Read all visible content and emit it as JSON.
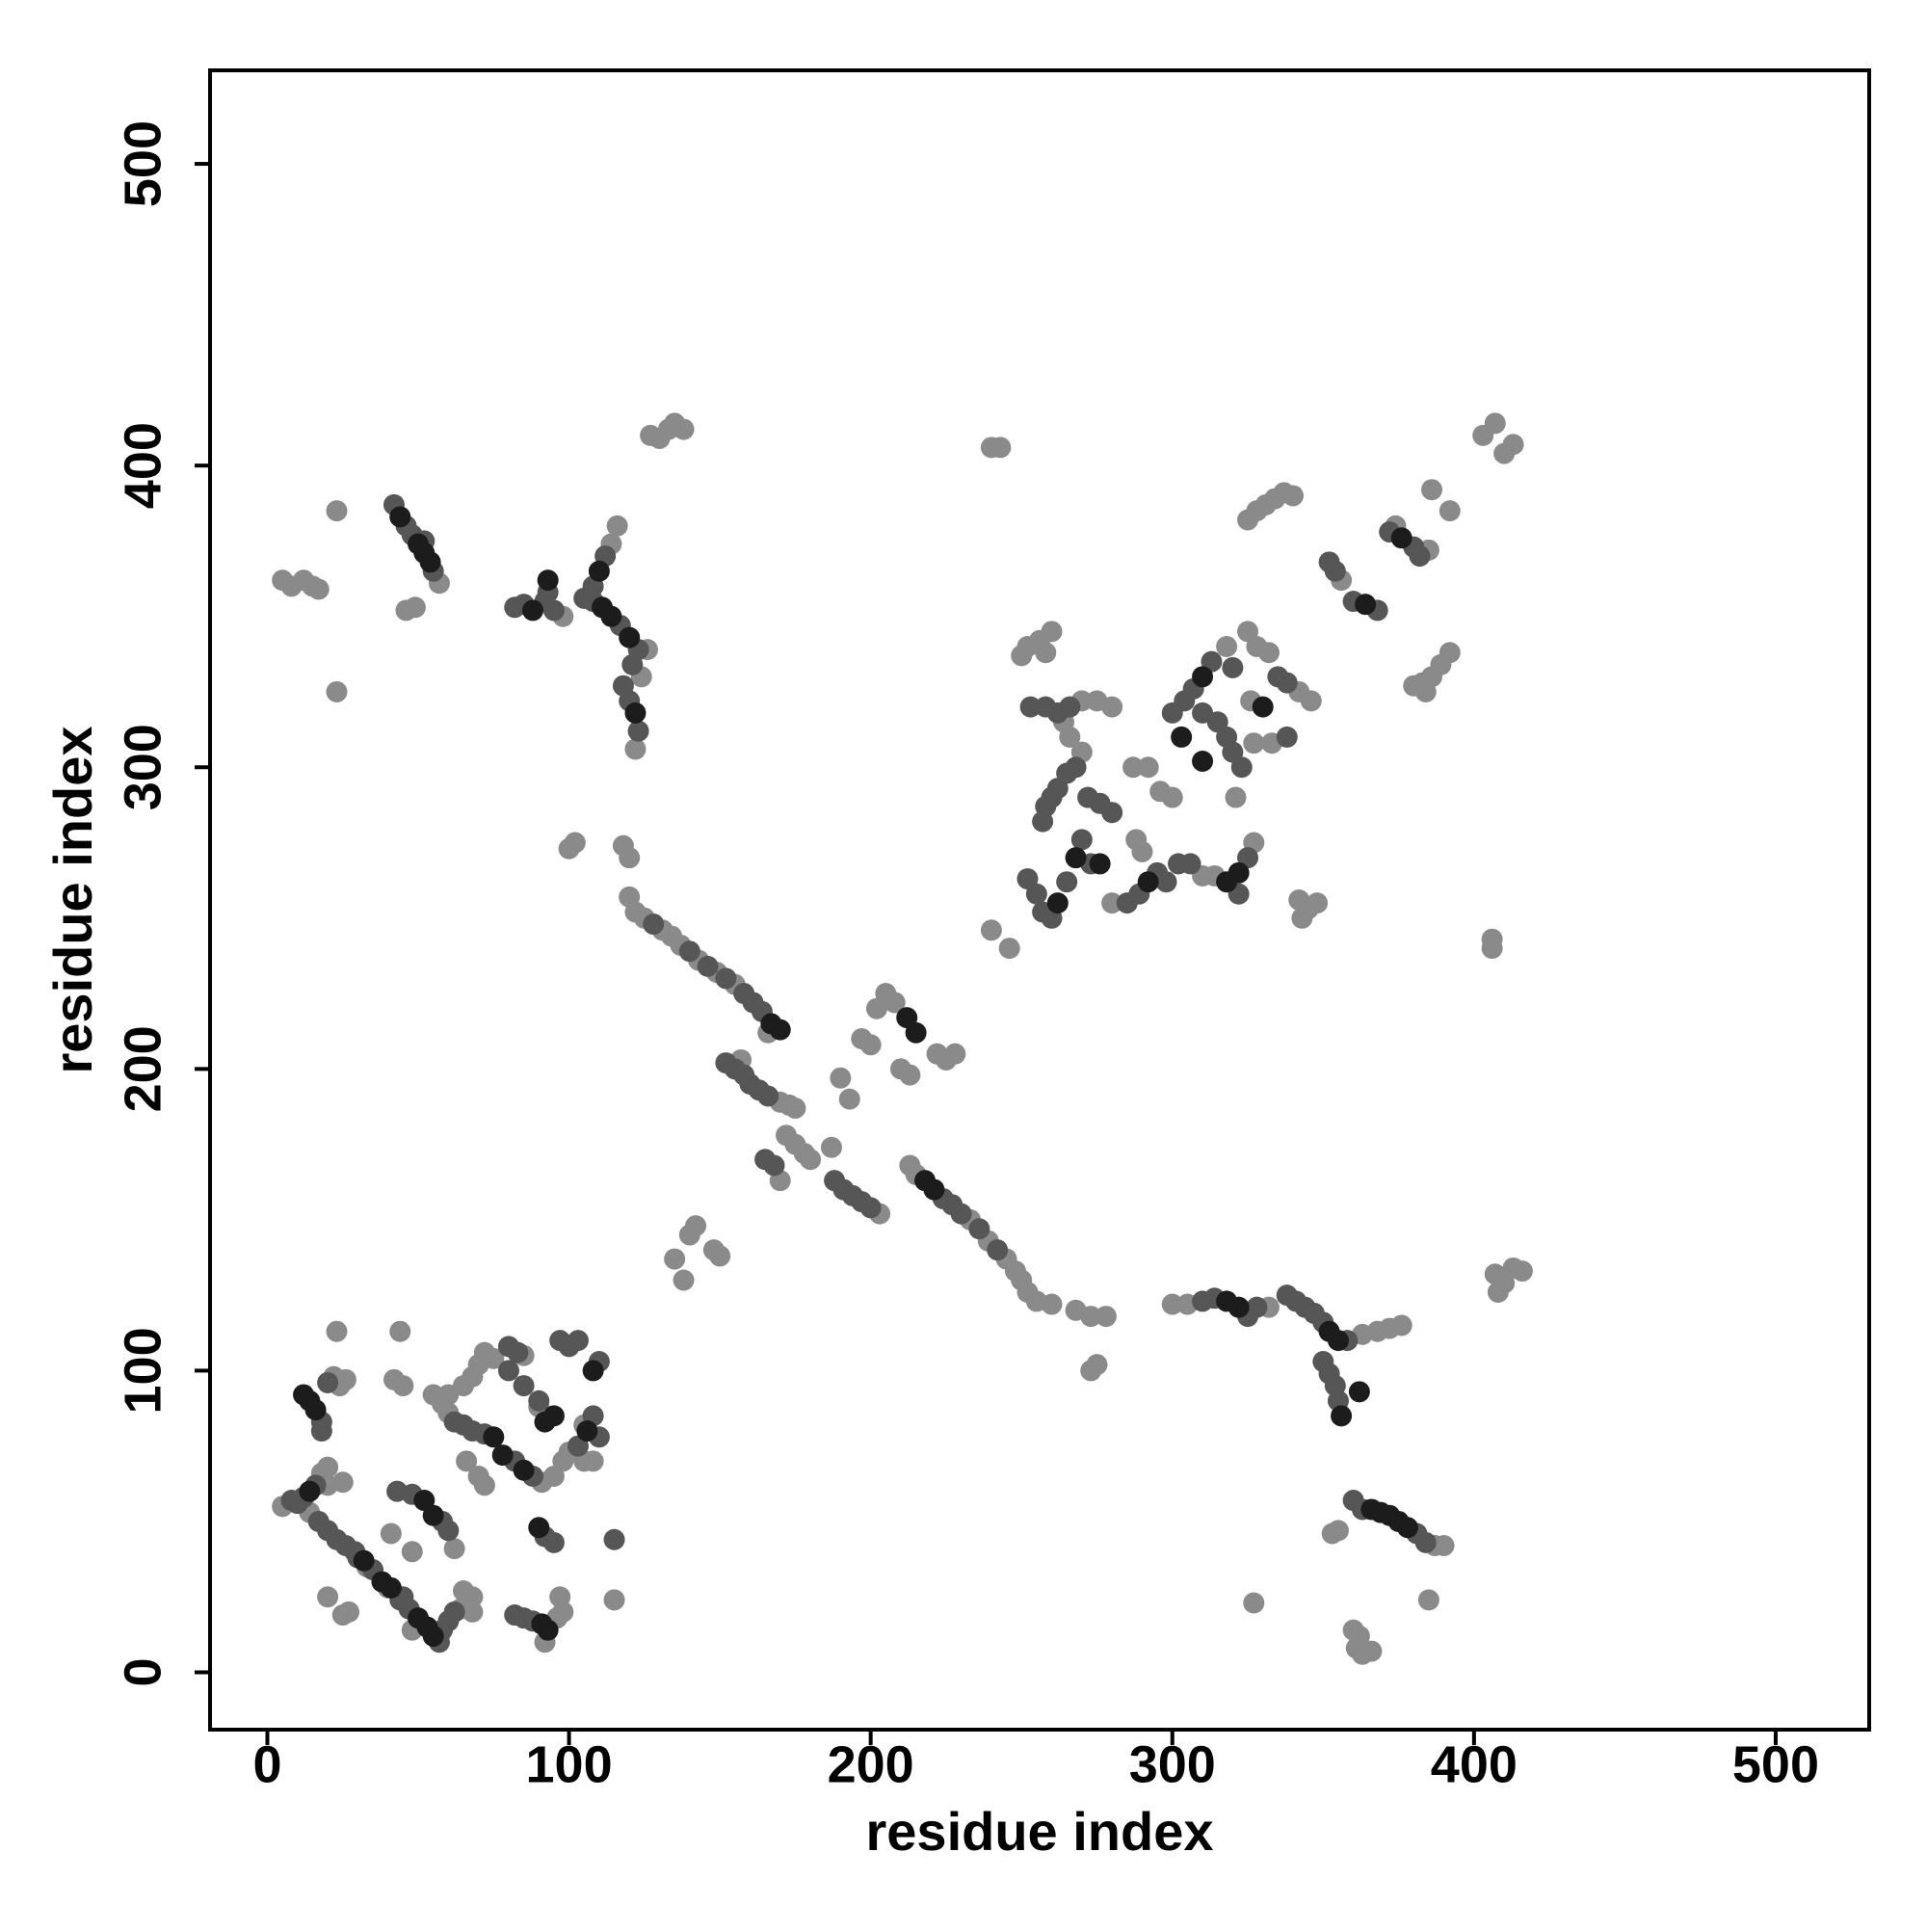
{
  "chart_data": {
    "type": "scatter",
    "xlabel": "residue index",
    "ylabel": "residue index",
    "xlim": [
      -19,
      531
    ],
    "ylim": [
      -19,
      531
    ],
    "xticks": [
      0,
      100,
      200,
      300,
      400,
      500
    ],
    "yticks": [
      0,
      100,
      200,
      300,
      400,
      500
    ],
    "grid": false,
    "series": [
      {
        "color": "#8a8a8a",
        "x": [
          5,
          8,
          12,
          15,
          17,
          23,
          23,
          57,
          46,
          49,
          98,
          126,
          114,
          116,
          122,
          124,
          100,
          102,
          118,
          120,
          127,
          130,
          133,
          135,
          138,
          240,
          243,
          120,
          122,
          125,
          131,
          134,
          137,
          143,
          149,
          155,
          166,
          157,
          170,
          173,
          170,
          172,
          175,
          178,
          180,
          175,
          187,
          193,
          190,
          197,
          200,
          202,
          205,
          208,
          210,
          213,
          222,
          225,
          228,
          135,
          140,
          142,
          138,
          148,
          150,
          203,
          213,
          215,
          233,
          239,
          245,
          248,
          250,
          252,
          255,
          260,
          268,
          273,
          275,
          273,
          278,
          300,
          305,
          332,
          363,
          368,
          372,
          376,
          353,
          355,
          385,
          327,
          360,
          362,
          361,
          363,
          366,
          387,
          390,
          407,
          410,
          413,
          416,
          408,
          240,
          246,
          252,
          256,
          260,
          250,
          258,
          270,
          275,
          280,
          266,
          264,
          270,
          280,
          288,
          290,
          310,
          314,
          287,
          292,
          296,
          300,
          318,
          325,
          328,
          332,
          342,
          346,
          326,
          327,
          333,
          327,
          321,
          343,
          345,
          348,
          342,
          325,
          328,
          331,
          334,
          337,
          340,
          356,
          374,
          385,
          386,
          392,
          380,
          383,
          386,
          389,
          392,
          384,
          403,
          407,
          410,
          413,
          406,
          406,
          5,
          14,
          18,
          20,
          64,
          68,
          65,
          68,
          22,
          24,
          26,
          23,
          44,
          42,
          45,
          25,
          18,
          20,
          27,
          20,
          25,
          62,
          48,
          41,
          33,
          40,
          48,
          96,
          98,
          97,
          92,
          55,
          58,
          60,
          91,
          95,
          98,
          100,
          105,
          75,
          72,
          70,
          68,
          65,
          85,
          90,
          115,
          108,
          105,
          60,
          66,
          70,
          72
        ],
        "values": [
          362,
          360,
          362,
          360,
          359,
          385,
          325,
          361,
          352,
          353,
          350,
          339,
          374,
          380,
          306,
          330,
          273,
          275,
          274,
          270,
          410,
          409,
          412,
          414,
          412,
          406,
          406,
          257,
          252,
          250,
          246,
          244,
          241,
          236,
          232,
          228,
          212,
          203,
          189,
          188,
          163,
          178,
          175,
          172,
          170,
          187,
          174,
          190,
          197,
          210,
          208,
          220,
          225,
          222,
          200,
          198,
          205,
          203,
          205,
          137,
          145,
          148,
          130,
          140,
          138,
          152,
          168,
          165,
          150,
          143,
          137,
          133,
          130,
          126,
          123,
          122,
          120,
          118,
          102,
          100,
          118,
          122,
          122,
          121,
          112,
          113,
          114,
          115,
          46,
          47,
          24,
          23,
          14,
          12,
          8,
          6,
          7,
          42,
          42,
          132,
          129,
          134,
          133,
          126,
          246,
          240,
          340,
          342,
          345,
          337,
          338,
          322,
          322,
          320,
          310,
          315,
          305,
          255,
          276,
          272,
          264,
          264,
          300,
          300,
          292,
          290,
          340,
          345,
          340,
          338,
          325,
          322,
          322,
          308,
          308,
          275,
          290,
          250,
          253,
          255,
          256,
          382,
          385,
          387,
          389,
          391,
          390,
          362,
          380,
          372,
          392,
          385,
          327,
          328,
          330,
          334,
          338,
          325,
          410,
          414,
          404,
          407,
          243,
          240,
          55,
          53,
          65,
          68,
          21,
          20,
          27,
          25,
          98,
          95,
          97,
          113,
          113,
          97,
          95,
          63,
          66,
          62,
          20,
          25,
          19,
          41,
          40,
          46,
          35,
          28,
          14,
          18,
          20,
          25,
          10,
          92,
          89,
          86,
          63,
          65,
          70,
          73,
          82,
          104,
          106,
          102,
          98,
          95,
          105,
          88,
          24,
          70,
          70,
          92,
          70,
          65,
          62
        ]
      },
      {
        "color": "#565656",
        "x": [
          42,
          46,
          48,
          52,
          55,
          82,
          85,
          92,
          95,
          93,
          105,
          108,
          117,
          123,
          108,
          112,
          118,
          120,
          123,
          121,
          128,
          140,
          146,
          152,
          158,
          161,
          164,
          152,
          155,
          158,
          160,
          163,
          166,
          165,
          168,
          188,
          191,
          194,
          197,
          200,
          224,
          227,
          230,
          236,
          242,
          310,
          314,
          325,
          328,
          338,
          341,
          344,
          347,
          350,
          358,
          350,
          352,
          354,
          355,
          360,
          363,
          381,
          384,
          253,
          258,
          262,
          266,
          257,
          258,
          260,
          262,
          265,
          268,
          252,
          255,
          257,
          260,
          265,
          270,
          273,
          272,
          276,
          280,
          285,
          289,
          295,
          298,
          302,
          306,
          300,
          304,
          307,
          313,
          310,
          315,
          320,
          335,
          338,
          323,
          320,
          318,
          338,
          322,
          325,
          352,
          354,
          360,
          368,
          372,
          380,
          382,
          8,
          10,
          12,
          16,
          17,
          20,
          23,
          26,
          29,
          35,
          44,
          47,
          57,
          58,
          60,
          62,
          18,
          18,
          20,
          48,
          58,
          60,
          82,
          85,
          88,
          62,
          65,
          68,
          72,
          82,
          88,
          103,
          108,
          110,
          90,
          85,
          80,
          80,
          83,
          97,
          100,
          103,
          110,
          92,
          95,
          115,
          30,
          45,
          43
        ],
        "values": [
          387,
          380,
          377,
          375,
          365,
          353,
          354,
          355,
          352,
          358,
          356,
          355,
          347,
          339,
          360,
          370,
          327,
          322,
          312,
          334,
          248,
          239,
          234,
          230,
          225,
          222,
          219,
          202,
          200,
          198,
          195,
          193,
          191,
          170,
          168,
          163,
          160,
          158,
          156,
          154,
          157,
          155,
          152,
          147,
          140,
          123,
          124,
          118,
          121,
          125,
          123,
          121,
          119,
          116,
          110,
          103,
          99,
          95,
          90,
          57,
          54,
          46,
          43,
          320,
          320,
          318,
          320,
          282,
          287,
          290,
          293,
          298,
          300,
          263,
          258,
          252,
          250,
          262,
          276,
          268,
          290,
          288,
          285,
          255,
          258,
          265,
          262,
          268,
          268,
          318,
          322,
          326,
          335,
          318,
          315,
          333,
          330,
          328,
          300,
          305,
          310,
          310,
          258,
          270,
          368,
          365,
          355,
          352,
          378,
          373,
          370,
          57,
          56,
          58,
          62,
          50,
          47,
          44,
          42,
          40,
          34,
          24,
          21,
          10,
          14,
          17,
          20,
          83,
          80,
          96,
          59,
          50,
          47,
          19,
          18,
          17,
          83,
          82,
          80,
          79,
          70,
          65,
          75,
          85,
          78,
          90,
          95,
          100,
          108,
          106,
          110,
          108,
          110,
          103,
          45,
          43,
          44,
          38,
          25,
          60
        ]
      },
      {
        "color": "#1c1c1c",
        "x": [
          50,
          52,
          54,
          44,
          93,
          88,
          111,
          114,
          120,
          122,
          110,
          218,
          221,
          212,
          215,
          170,
          167,
          322,
          318,
          355,
          352,
          366,
          369,
          372,
          375,
          378,
          356,
          362,
          303,
          310,
          310,
          322,
          318,
          262,
          268,
          276,
          292,
          330,
          376,
          364,
          14,
          12,
          14,
          16,
          53,
          55,
          50,
          52,
          55,
          75,
          78,
          85,
          91,
          93,
          92,
          95,
          106,
          108,
          90,
          41,
          32,
          38
        ],
        "values": [
          374,
          371,
          368,
          383,
          362,
          352,
          353,
          350,
          343,
          318,
          365,
          163,
          160,
          217,
          212,
          213,
          215,
          121,
          123,
          110,
          113,
          54,
          53,
          52,
          50,
          48,
          85,
          93,
          310,
          302,
          330,
          265,
          262,
          255,
          270,
          268,
          262,
          320,
          376,
          354,
          60,
          92,
          90,
          87,
          15,
          12,
          18,
          57,
          52,
          78,
          72,
          67,
          16,
          14,
          83,
          85,
          80,
          100,
          48,
          28,
          37,
          30
        ]
      }
    ]
  }
}
